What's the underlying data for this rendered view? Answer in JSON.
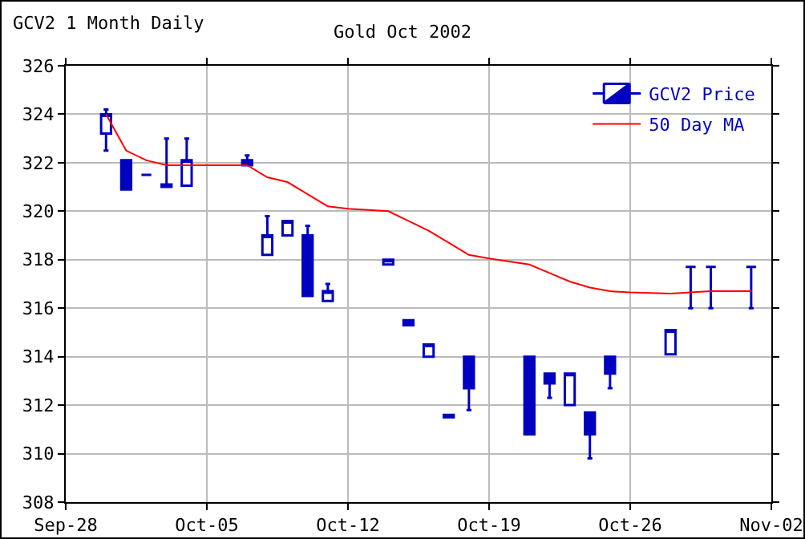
{
  "chart_data": {
    "type": "candlestick",
    "title": "Gold Oct 2002",
    "subtitle": "GCV2 1 Month Daily",
    "xlim": [
      "2002-09-28",
      "2002-11-02"
    ],
    "xticks": [
      {
        "value": "2002-09-28",
        "label": "Sep-28"
      },
      {
        "value": "2002-10-05",
        "label": "Oct-05"
      },
      {
        "value": "2002-10-12",
        "label": "Oct-12"
      },
      {
        "value": "2002-10-19",
        "label": "Oct-19"
      },
      {
        "value": "2002-10-26",
        "label": "Oct-26"
      },
      {
        "value": "2002-11-02",
        "label": "Nov-02"
      }
    ],
    "ylim": [
      308,
      326
    ],
    "yticks": [
      308,
      310,
      312,
      314,
      316,
      318,
      320,
      322,
      324,
      326
    ],
    "grid": true,
    "legend": "top right",
    "series": [
      {
        "name": "GCV2 Price",
        "type": "candlestick",
        "color": "#0000c0",
        "x": [
          "2002-09-30",
          "2002-10-01",
          "2002-10-02",
          "2002-10-03",
          "2002-10-04",
          "2002-10-07",
          "2002-10-08",
          "2002-10-09",
          "2002-10-10",
          "2002-10-11",
          "2002-10-14",
          "2002-10-15",
          "2002-10-16",
          "2002-10-17",
          "2002-10-18",
          "2002-10-21",
          "2002-10-22",
          "2002-10-23",
          "2002-10-24",
          "2002-10-25",
          "2002-10-28",
          "2002-10-29",
          "2002-10-30",
          "2002-11-01"
        ],
        "ohlc": [
          [
            323.2,
            324.2,
            322.5,
            324.0
          ],
          [
            322.1,
            322.1,
            320.9,
            320.9
          ],
          [
            321.5,
            321.5,
            321.5,
            321.5
          ],
          [
            321.1,
            323.0,
            321.0,
            321.0
          ],
          [
            321.05,
            323.0,
            321.05,
            322.1
          ],
          [
            322.1,
            322.3,
            321.9,
            321.9
          ],
          [
            318.2,
            319.8,
            318.2,
            319.0
          ],
          [
            319.0,
            319.6,
            319.0,
            319.6
          ],
          [
            319.0,
            319.4,
            316.5,
            316.5
          ],
          [
            316.3,
            317.0,
            316.3,
            316.7
          ],
          [
            317.8,
            318.0,
            317.8,
            318.0
          ],
          [
            315.5,
            315.5,
            315.3,
            315.3
          ],
          [
            314.0,
            314.5,
            314.0,
            314.5
          ],
          [
            311.5,
            311.6,
            311.5,
            311.6
          ],
          [
            314.0,
            314.0,
            311.8,
            312.7
          ],
          [
            314.0,
            314.0,
            310.8,
            310.8
          ],
          [
            313.3,
            313.3,
            312.3,
            312.9
          ],
          [
            312.0,
            313.3,
            312.0,
            313.3
          ],
          [
            311.7,
            311.7,
            309.8,
            310.8
          ],
          [
            314.0,
            314.0,
            312.7,
            313.3
          ],
          [
            314.1,
            315.1,
            314.1,
            315.1
          ],
          [
            317.7,
            317.7,
            316.0,
            317.7
          ],
          [
            317.7,
            317.7,
            316.0,
            317.7
          ],
          [
            317.7,
            317.7,
            316.0,
            317.7
          ]
        ]
      },
      {
        "name": "50 Day MA",
        "type": "line",
        "color": "#ff0000",
        "x": [
          "2002-09-30",
          "2002-10-01",
          "2002-10-02",
          "2002-10-03",
          "2002-10-07",
          "2002-10-08",
          "2002-10-09",
          "2002-10-10",
          "2002-10-11",
          "2002-10-12",
          "2002-10-14",
          "2002-10-15",
          "2002-10-16",
          "2002-10-17",
          "2002-10-18",
          "2002-10-19",
          "2002-10-21",
          "2002-10-22",
          "2002-10-23",
          "2002-10-24",
          "2002-10-25",
          "2002-10-26",
          "2002-10-28",
          "2002-10-29",
          "2002-10-30",
          "2002-11-01"
        ],
        "values": [
          324.0,
          322.5,
          322.1,
          321.9,
          321.9,
          321.4,
          321.2,
          320.7,
          320.2,
          320.1,
          320.0,
          319.6,
          319.2,
          318.7,
          318.2,
          318.05,
          317.8,
          317.45,
          317.1,
          316.85,
          316.7,
          316.65,
          316.6,
          316.65,
          316.7,
          316.7
        ]
      }
    ]
  }
}
